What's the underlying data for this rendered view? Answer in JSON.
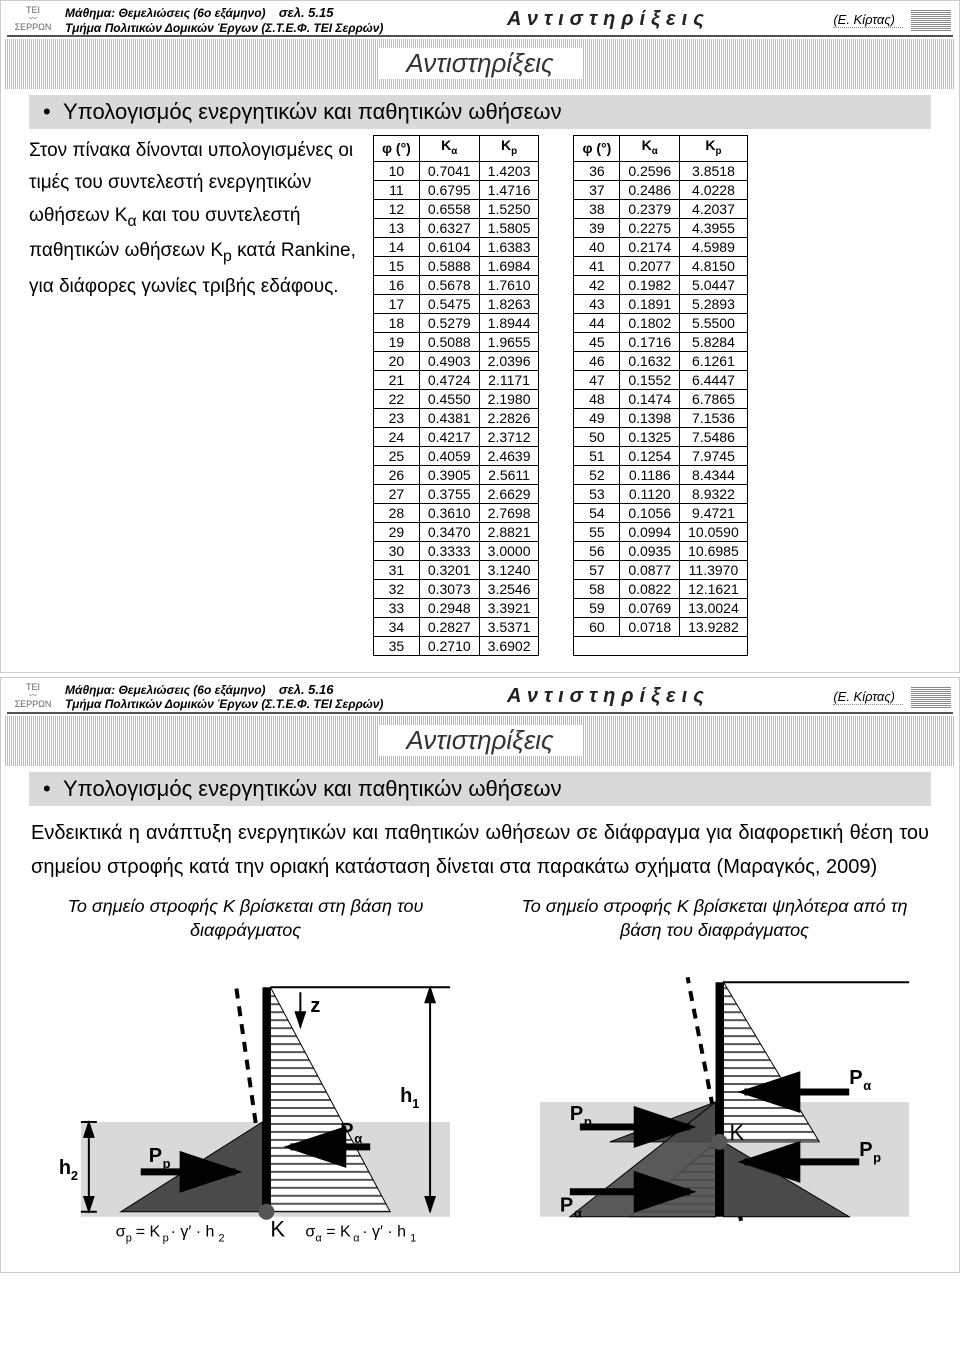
{
  "header": {
    "course": "Μάθημα: Θεμελιώσεις (6ο εξάμηνο)",
    "dept": "Τμήμα Πολιτικών Δομικών Έργων (Σ.Τ.Ε.Φ. ΤΕΙ Σερρών)",
    "page1": "σελ. 5.15",
    "page2": "σελ. 5.16",
    "topic": "Αντιστηρίξεις",
    "author": "(Ε. Κίρτας)",
    "logo_top": "ΤΕΙ",
    "logo_bottom": "ΣΕΡΡΩΝ"
  },
  "band_title": "Αντιστηρίξεις",
  "bullet": "Υπολογισμός ενεργητικών και παθητικών ωθήσεων",
  "intro": "Στον πίνακα δίνονται υπολογισμένες οι τιμές του συντελεστή ενεργητικών ωθήσεων K<sub>α</sub> και του συντελεστή παθητικών ωθήσεων K<sub>p</sub> κατά Rankine, για διάφορες γωνίες τριβής εδάφους.",
  "table_headers": {
    "phi": "φ (°)",
    "ka": "Kα",
    "kp": "Kp"
  },
  "table1": [
    [
      "10",
      "0.7041",
      "1.4203"
    ],
    [
      "11",
      "0.6795",
      "1.4716"
    ],
    [
      "12",
      "0.6558",
      "1.5250"
    ],
    [
      "13",
      "0.6327",
      "1.5805"
    ],
    [
      "14",
      "0.6104",
      "1.6383"
    ],
    [
      "15",
      "0.5888",
      "1.6984"
    ],
    [
      "16",
      "0.5678",
      "1.7610"
    ],
    [
      "17",
      "0.5475",
      "1.8263"
    ],
    [
      "18",
      "0.5279",
      "1.8944"
    ],
    [
      "19",
      "0.5088",
      "1.9655"
    ],
    [
      "20",
      "0.4903",
      "2.0396"
    ],
    [
      "21",
      "0.4724",
      "2.1171"
    ],
    [
      "22",
      "0.4550",
      "2.1980"
    ],
    [
      "23",
      "0.4381",
      "2.2826"
    ],
    [
      "24",
      "0.4217",
      "2.3712"
    ],
    [
      "25",
      "0.4059",
      "2.4639"
    ],
    [
      "26",
      "0.3905",
      "2.5611"
    ],
    [
      "27",
      "0.3755",
      "2.6629"
    ],
    [
      "28",
      "0.3610",
      "2.7698"
    ],
    [
      "29",
      "0.3470",
      "2.8821"
    ],
    [
      "30",
      "0.3333",
      "3.0000"
    ],
    [
      "31",
      "0.3201",
      "3.1240"
    ],
    [
      "32",
      "0.3073",
      "3.2546"
    ],
    [
      "33",
      "0.2948",
      "3.3921"
    ],
    [
      "34",
      "0.2827",
      "3.5371"
    ],
    [
      "35",
      "0.2710",
      "3.6902"
    ]
  ],
  "table2": [
    [
      "36",
      "0.2596",
      "3.8518"
    ],
    [
      "37",
      "0.2486",
      "4.0228"
    ],
    [
      "38",
      "0.2379",
      "4.2037"
    ],
    [
      "39",
      "0.2275",
      "4.3955"
    ],
    [
      "40",
      "0.2174",
      "4.5989"
    ],
    [
      "41",
      "0.2077",
      "4.8150"
    ],
    [
      "42",
      "0.1982",
      "5.0447"
    ],
    [
      "43",
      "0.1891",
      "5.2893"
    ],
    [
      "44",
      "0.1802",
      "5.5500"
    ],
    [
      "45",
      "0.1716",
      "5.8284"
    ],
    [
      "46",
      "0.1632",
      "6.1261"
    ],
    [
      "47",
      "0.1552",
      "6.4447"
    ],
    [
      "48",
      "0.1474",
      "6.7865"
    ],
    [
      "49",
      "0.1398",
      "7.1536"
    ],
    [
      "50",
      "0.1325",
      "7.5486"
    ],
    [
      "51",
      "0.1254",
      "7.9745"
    ],
    [
      "52",
      "0.1186",
      "8.4344"
    ],
    [
      "53",
      "0.1120",
      "8.9322"
    ],
    [
      "54",
      "0.1056",
      "9.4721"
    ],
    [
      "55",
      "0.0994",
      "10.0590"
    ],
    [
      "56",
      "0.0935",
      "10.6985"
    ],
    [
      "57",
      "0.0877",
      "11.3970"
    ],
    [
      "58",
      "0.0822",
      "12.1621"
    ],
    [
      "59",
      "0.0769",
      "13.0024"
    ],
    [
      "60",
      "0.0718",
      "13.9282"
    ]
  ],
  "slide2": {
    "para": "Ενδεικτικά η ανάπτυξη ενεργητικών και παθητικών ωθήσεων σε διάφραγμα για διαφορετική θέση του σημείου στροφής κατά την οριακή κατάσταση δίνεται στα παρακάτω σχήματα  (Μαραγκός, 2009)",
    "cap_left": "Το σημείο στροφής Κ βρίσκεται στη βάση του διαφράγματος",
    "cap_right": "Το σημείο στροφής Κ βρίσκεται ψηλότερα από τη βάση του διαφράγματος"
  },
  "fig_labels": {
    "z": "z",
    "h1": "h1",
    "h2": "h2",
    "Pp": "Pp",
    "Pa": "Pα",
    "K": "K",
    "eq_left": "σp = Kp · γ′ · h2",
    "eq_right": "σα = Kα · γ′ · h1"
  },
  "colors": {
    "band": "#bbbbbb",
    "grey_bg": "#d9d9d9",
    "dark": "#4a4a4a",
    "hatch": "#555555",
    "black": "#000000"
  }
}
